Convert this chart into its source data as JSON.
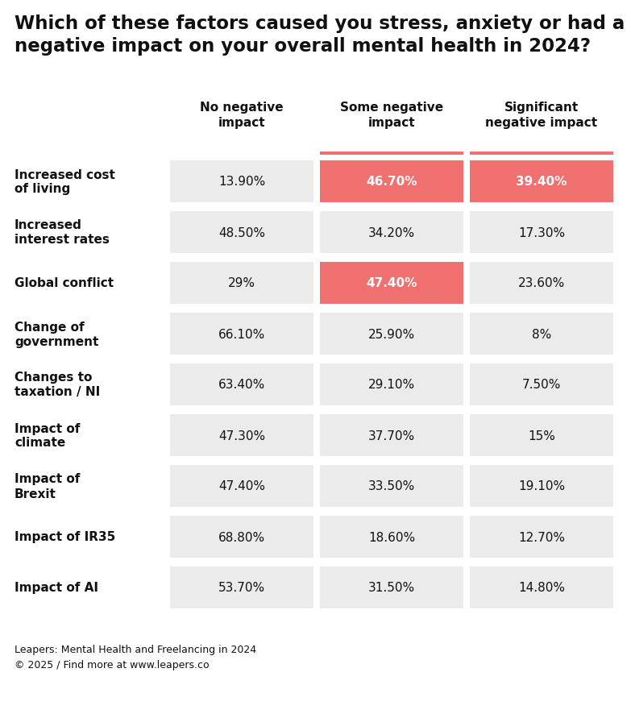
{
  "title_line1": "Which of these factors caused you stress, anxiety or had a",
  "title_line2": "negative impact on your overall mental health in 2024?",
  "col_headers": [
    "No negative\nimpact",
    "Some negative\nimpact",
    "Significant\nnegative impact"
  ],
  "rows": [
    {
      "label": "Increased cost\nof living",
      "values": [
        "13.90%",
        "46.70%",
        "39.40%"
      ],
      "highlights": [
        false,
        true,
        true
      ]
    },
    {
      "label": "Increased\ninterest rates",
      "values": [
        "48.50%",
        "34.20%",
        "17.30%"
      ],
      "highlights": [
        false,
        false,
        false
      ]
    },
    {
      "label": "Global conflict",
      "values": [
        "29%",
        "47.40%",
        "23.60%"
      ],
      "highlights": [
        false,
        true,
        false
      ]
    },
    {
      "label": "Change of\ngovernment",
      "values": [
        "66.10%",
        "25.90%",
        "8%"
      ],
      "highlights": [
        false,
        false,
        false
      ]
    },
    {
      "label": "Changes to\ntaxation / NI",
      "values": [
        "63.40%",
        "29.10%",
        "7.50%"
      ],
      "highlights": [
        false,
        false,
        false
      ]
    },
    {
      "label": "Impact of\nclimate",
      "values": [
        "47.30%",
        "37.70%",
        "15%"
      ],
      "highlights": [
        false,
        false,
        false
      ]
    },
    {
      "label": "Impact of\nBrexit",
      "values": [
        "47.40%",
        "33.50%",
        "19.10%"
      ],
      "highlights": [
        false,
        false,
        false
      ]
    },
    {
      "label": "Impact of IR35",
      "values": [
        "68.80%",
        "18.60%",
        "12.70%"
      ],
      "highlights": [
        false,
        false,
        false
      ]
    },
    {
      "label": "Impact of AI",
      "values": [
        "53.70%",
        "31.50%",
        "14.80%"
      ],
      "highlights": [
        false,
        false,
        false
      ]
    }
  ],
  "highlight_color": "#F07070",
  "normal_cell_color": "#EBEBEB",
  "white_bg": "#FFFFFF",
  "text_dark": "#111111",
  "text_white": "#FFFFFF",
  "footer": "Leapers: Mental Health and Freelancing in 2024\n© 2025 / Find more at www.leapers.co",
  "title_fontsize": 16.5,
  "header_fontsize": 11,
  "label_fontsize": 11,
  "value_fontsize": 11,
  "footer_fontsize": 9
}
